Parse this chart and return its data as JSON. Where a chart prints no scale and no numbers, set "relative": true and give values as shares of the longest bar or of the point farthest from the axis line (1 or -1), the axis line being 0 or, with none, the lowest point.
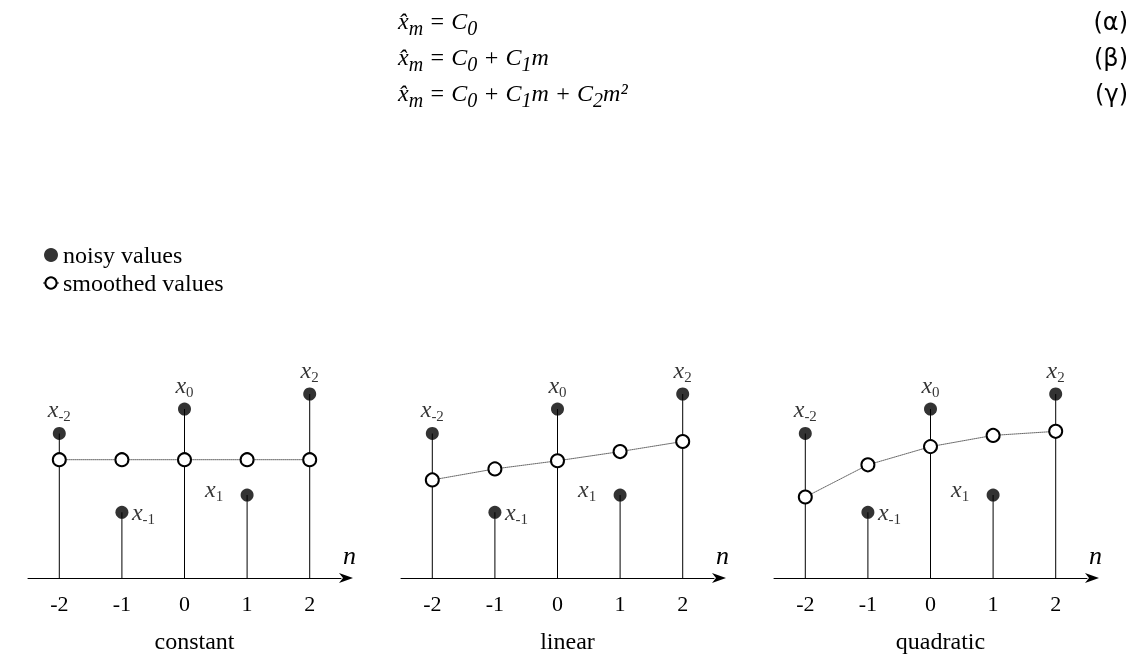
{
  "chart_data": [
    {
      "type": "lollipop",
      "title": "constant",
      "xlabel": "n",
      "relative": true,
      "legend": "top left",
      "marker": "circle",
      "categories": [
        "-2",
        "-1",
        "0",
        "1",
        "2"
      ],
      "series": [
        {
          "name": "noisy values",
          "color": "#000000",
          "values": [
            0.786,
            0.357,
            0.918,
            0.451,
            1.0
          ]
        },
        {
          "name": "smoothed values",
          "type": "line",
          "line_style": "dotted",
          "color": "#000000",
          "values": [
            0.643,
            0.643,
            0.643,
            0.643,
            0.643
          ]
        }
      ],
      "annotations": [
        "x̂$_{m}$ = C$_{0}$",
        "(α)",
        "x̂$_{m}$ = C$_{0}$ + C$_{1}$m",
        "(β)",
        "x̂$_{m}$ = C$_{0}$ + C$_{1}$m + C$_{2}$m²",
        "(γ)",
        {
          "text": "x$_{-2}$",
          "x": "-2",
          "y": 0.786
        },
        {
          "text": "x$_{-1}$",
          "x": "-1",
          "y": 0.357
        },
        {
          "text": "x$_{0}$",
          "x": "0",
          "y": 0.918
        },
        {
          "text": "x$_{1}$",
          "x": "1",
          "y": 0.451
        },
        {
          "text": "x$_{2}$",
          "x": "2",
          "y": 1.0
        }
      ]
    },
    {
      "type": "lollipop",
      "title": "linear",
      "xlabel": "n",
      "relative": true,
      "marker": "circle",
      "categories": [
        "-2",
        "-1",
        "0",
        "1",
        "2"
      ],
      "series": [
        {
          "color": "#000000",
          "values": [
            0.786,
            0.357,
            0.918,
            0.451,
            1.0
          ]
        },
        {
          "type": "line",
          "line_style": "dotted",
          "color": "#000000",
          "values": [
            0.533,
            0.593,
            0.637,
            0.687,
            0.742
          ]
        }
      ],
      "annotations": [
        {
          "text": "x$_{-2}$",
          "x": "-2",
          "y": 0.786
        },
        {
          "text": "x$_{-1}$",
          "x": "-1",
          "y": 0.357
        },
        {
          "text": "x$_{0}$",
          "x": "0",
          "y": 0.918
        },
        {
          "text": "x$_{1}$",
          "x": "1",
          "y": 0.451
        },
        {
          "text": "x$_{2}$",
          "x": "2",
          "y": 1.0
        }
      ]
    },
    {
      "type": "lollipop",
      "title": "quadratic",
      "xlabel": "n",
      "relative": true,
      "marker": "circle",
      "categories": [
        "-2",
        "-1",
        "0",
        "1",
        "2"
      ],
      "series": [
        {
          "color": "#000000",
          "values": [
            0.786,
            0.357,
            0.918,
            0.451,
            1.0
          ]
        },
        {
          "type": "line",
          "line_style": "dotted",
          "color": "#000000",
          "values": [
            0.44,
            0.615,
            0.714,
            0.775,
            0.797
          ]
        }
      ],
      "annotations": [
        {
          "text": "x$_{-2}$",
          "x": "-2",
          "y": 0.786
        },
        {
          "text": "x$_{-1}$",
          "x": "-1",
          "y": 0.357
        },
        {
          "text": "x$_{0}$",
          "x": "0",
          "y": 0.918
        },
        {
          "text": "x$_{1}$",
          "x": "1",
          "y": 0.451
        },
        {
          "text": "x$_{2}$",
          "x": "2",
          "y": 1.0
        }
      ]
    }
  ]
}
